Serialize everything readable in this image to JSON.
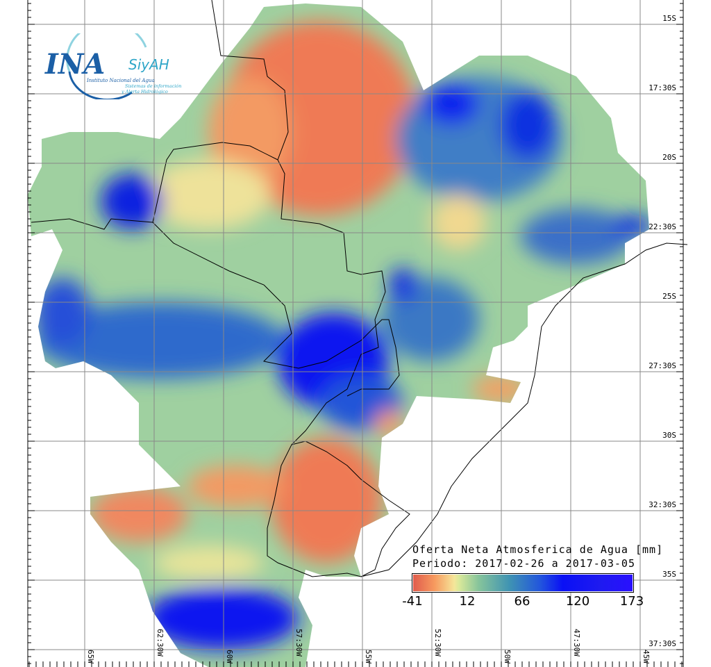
{
  "logo": {
    "main": "INA",
    "sub": "SiyAH",
    "org": "Instituto Nacional del Agua",
    "tag1": "Sistemas de información",
    "tag2": "y Alerta Hidrológico"
  },
  "map": {
    "title": "Oferta Neta Atmosferica de Agua [mm]",
    "period": "Periodo: 2017-02-26 a 2017-03-05",
    "lat_labels": [
      "15S",
      "17:30S",
      "20S",
      "22:30S",
      "25S",
      "27:30S",
      "30S",
      "32:30S",
      "35S",
      "37:30S"
    ],
    "lon_labels": [
      "65W",
      "62:30W",
      "60W",
      "57:30W",
      "55W",
      "52:30W",
      "50W",
      "47:30W",
      "45W"
    ],
    "colorbar": {
      "ticks": [
        "-41",
        "12",
        "66",
        "120",
        "173"
      ],
      "colors": [
        "#e05a4c",
        "#f5e69a",
        "#3f93b3",
        "#0a10f5",
        "#2a10ff"
      ]
    }
  }
}
